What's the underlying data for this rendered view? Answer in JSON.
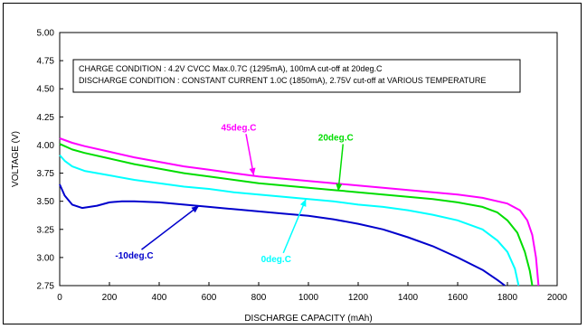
{
  "chart_data": {
    "type": "line",
    "xlabel": "DISCHARGE CAPACITY  (mAh)",
    "ylabel": "VOLTAGE  (V)",
    "xlim": [
      0,
      2000
    ],
    "ylim": [
      2.75,
      5.0
    ],
    "xticks": [
      0,
      200,
      400,
      600,
      800,
      1000,
      1200,
      1400,
      1600,
      1800,
      2000
    ],
    "xtick_labels": [
      "0",
      "200",
      "400",
      "600",
      "800",
      "1000",
      "1200",
      "1400",
      "1600",
      "1800",
      "2000"
    ],
    "yticks": [
      2.75,
      3.0,
      3.25,
      3.5,
      3.75,
      4.0,
      4.25,
      4.5,
      4.75,
      5.0
    ],
    "ytick_labels": [
      "2.75",
      "3.00",
      "3.25",
      "3.50",
      "3.75",
      "4.00",
      "4.25",
      "4.50",
      "4.75",
      "5.00"
    ],
    "grid": false,
    "conditions": [
      "CHARGE CONDITION      : 4.2V CVCC Max.0.7C (1295mA), 100mA cut-off at 20deg.C",
      "DISCHARGE CONDITION : CONSTANT CURRENT 1.0C (1850mA), 2.75V cut-off at VARIOUS TEMPERATURE"
    ],
    "series": [
      {
        "name": "45deg.C",
        "color": "#ff00ff",
        "points": [
          [
            0,
            4.06
          ],
          [
            50,
            4.02
          ],
          [
            100,
            3.99
          ],
          [
            200,
            3.94
          ],
          [
            300,
            3.89
          ],
          [
            400,
            3.85
          ],
          [
            500,
            3.81
          ],
          [
            600,
            3.78
          ],
          [
            700,
            3.75
          ],
          [
            800,
            3.72
          ],
          [
            900,
            3.7
          ],
          [
            1000,
            3.68
          ],
          [
            1100,
            3.66
          ],
          [
            1200,
            3.64
          ],
          [
            1300,
            3.62
          ],
          [
            1400,
            3.6
          ],
          [
            1500,
            3.58
          ],
          [
            1600,
            3.56
          ],
          [
            1700,
            3.53
          ],
          [
            1800,
            3.48
          ],
          [
            1850,
            3.42
          ],
          [
            1880,
            3.33
          ],
          [
            1900,
            3.2
          ],
          [
            1915,
            3.0
          ],
          [
            1925,
            2.75
          ]
        ]
      },
      {
        "name": "20deg.C",
        "color": "#00dd00",
        "points": [
          [
            0,
            4.01
          ],
          [
            50,
            3.96
          ],
          [
            100,
            3.93
          ],
          [
            200,
            3.88
          ],
          [
            300,
            3.83
          ],
          [
            400,
            3.79
          ],
          [
            500,
            3.75
          ],
          [
            600,
            3.72
          ],
          [
            700,
            3.69
          ],
          [
            800,
            3.66
          ],
          [
            900,
            3.64
          ],
          [
            1000,
            3.62
          ],
          [
            1100,
            3.6
          ],
          [
            1200,
            3.58
          ],
          [
            1300,
            3.56
          ],
          [
            1400,
            3.54
          ],
          [
            1500,
            3.52
          ],
          [
            1600,
            3.49
          ],
          [
            1700,
            3.45
          ],
          [
            1760,
            3.4
          ],
          [
            1800,
            3.33
          ],
          [
            1840,
            3.22
          ],
          [
            1870,
            3.05
          ],
          [
            1890,
            2.88
          ],
          [
            1900,
            2.75
          ]
        ]
      },
      {
        "name": "0deg.C",
        "color": "#00ffff",
        "points": [
          [
            0,
            3.91
          ],
          [
            20,
            3.86
          ],
          [
            50,
            3.81
          ],
          [
            100,
            3.77
          ],
          [
            200,
            3.73
          ],
          [
            300,
            3.69
          ],
          [
            400,
            3.66
          ],
          [
            500,
            3.63
          ],
          [
            600,
            3.61
          ],
          [
            700,
            3.58
          ],
          [
            800,
            3.56
          ],
          [
            900,
            3.54
          ],
          [
            1000,
            3.52
          ],
          [
            1100,
            3.5
          ],
          [
            1200,
            3.47
          ],
          [
            1300,
            3.45
          ],
          [
            1400,
            3.42
          ],
          [
            1500,
            3.38
          ],
          [
            1600,
            3.33
          ],
          [
            1700,
            3.25
          ],
          [
            1760,
            3.15
          ],
          [
            1800,
            3.05
          ],
          [
            1830,
            2.9
          ],
          [
            1845,
            2.75
          ]
        ]
      },
      {
        "name": "-10deg.C",
        "color": "#0000cc",
        "points": [
          [
            0,
            3.65
          ],
          [
            20,
            3.55
          ],
          [
            50,
            3.47
          ],
          [
            90,
            3.44
          ],
          [
            150,
            3.46
          ],
          [
            200,
            3.49
          ],
          [
            250,
            3.5
          ],
          [
            300,
            3.5
          ],
          [
            400,
            3.49
          ],
          [
            500,
            3.47
          ],
          [
            600,
            3.45
          ],
          [
            700,
            3.43
          ],
          [
            800,
            3.41
          ],
          [
            900,
            3.39
          ],
          [
            1000,
            3.37
          ],
          [
            1100,
            3.34
          ],
          [
            1200,
            3.3
          ],
          [
            1300,
            3.25
          ],
          [
            1400,
            3.18
          ],
          [
            1500,
            3.1
          ],
          [
            1600,
            3.0
          ],
          [
            1700,
            2.89
          ],
          [
            1760,
            2.8
          ],
          [
            1790,
            2.75
          ]
        ]
      }
    ],
    "annotations": [
      {
        "label": "45deg.C",
        "color": "#ff00ff",
        "label_at": [
          720,
          4.13
        ],
        "arrow_to": [
          780,
          3.73
        ]
      },
      {
        "label": "20deg.C",
        "color": "#00dd00",
        "label_at": [
          1110,
          4.04
        ],
        "arrow_to": [
          1120,
          3.59
        ]
      },
      {
        "label": "0deg.C",
        "color": "#00ffff",
        "label_at": [
          870,
          2.96
        ],
        "arrow_to": [
          990,
          3.52
        ]
      },
      {
        "label": "-10deg.C",
        "color": "#0000cc",
        "label_at": [
          300,
          2.99
        ],
        "arrow_to": [
          560,
          3.46
        ]
      }
    ]
  }
}
